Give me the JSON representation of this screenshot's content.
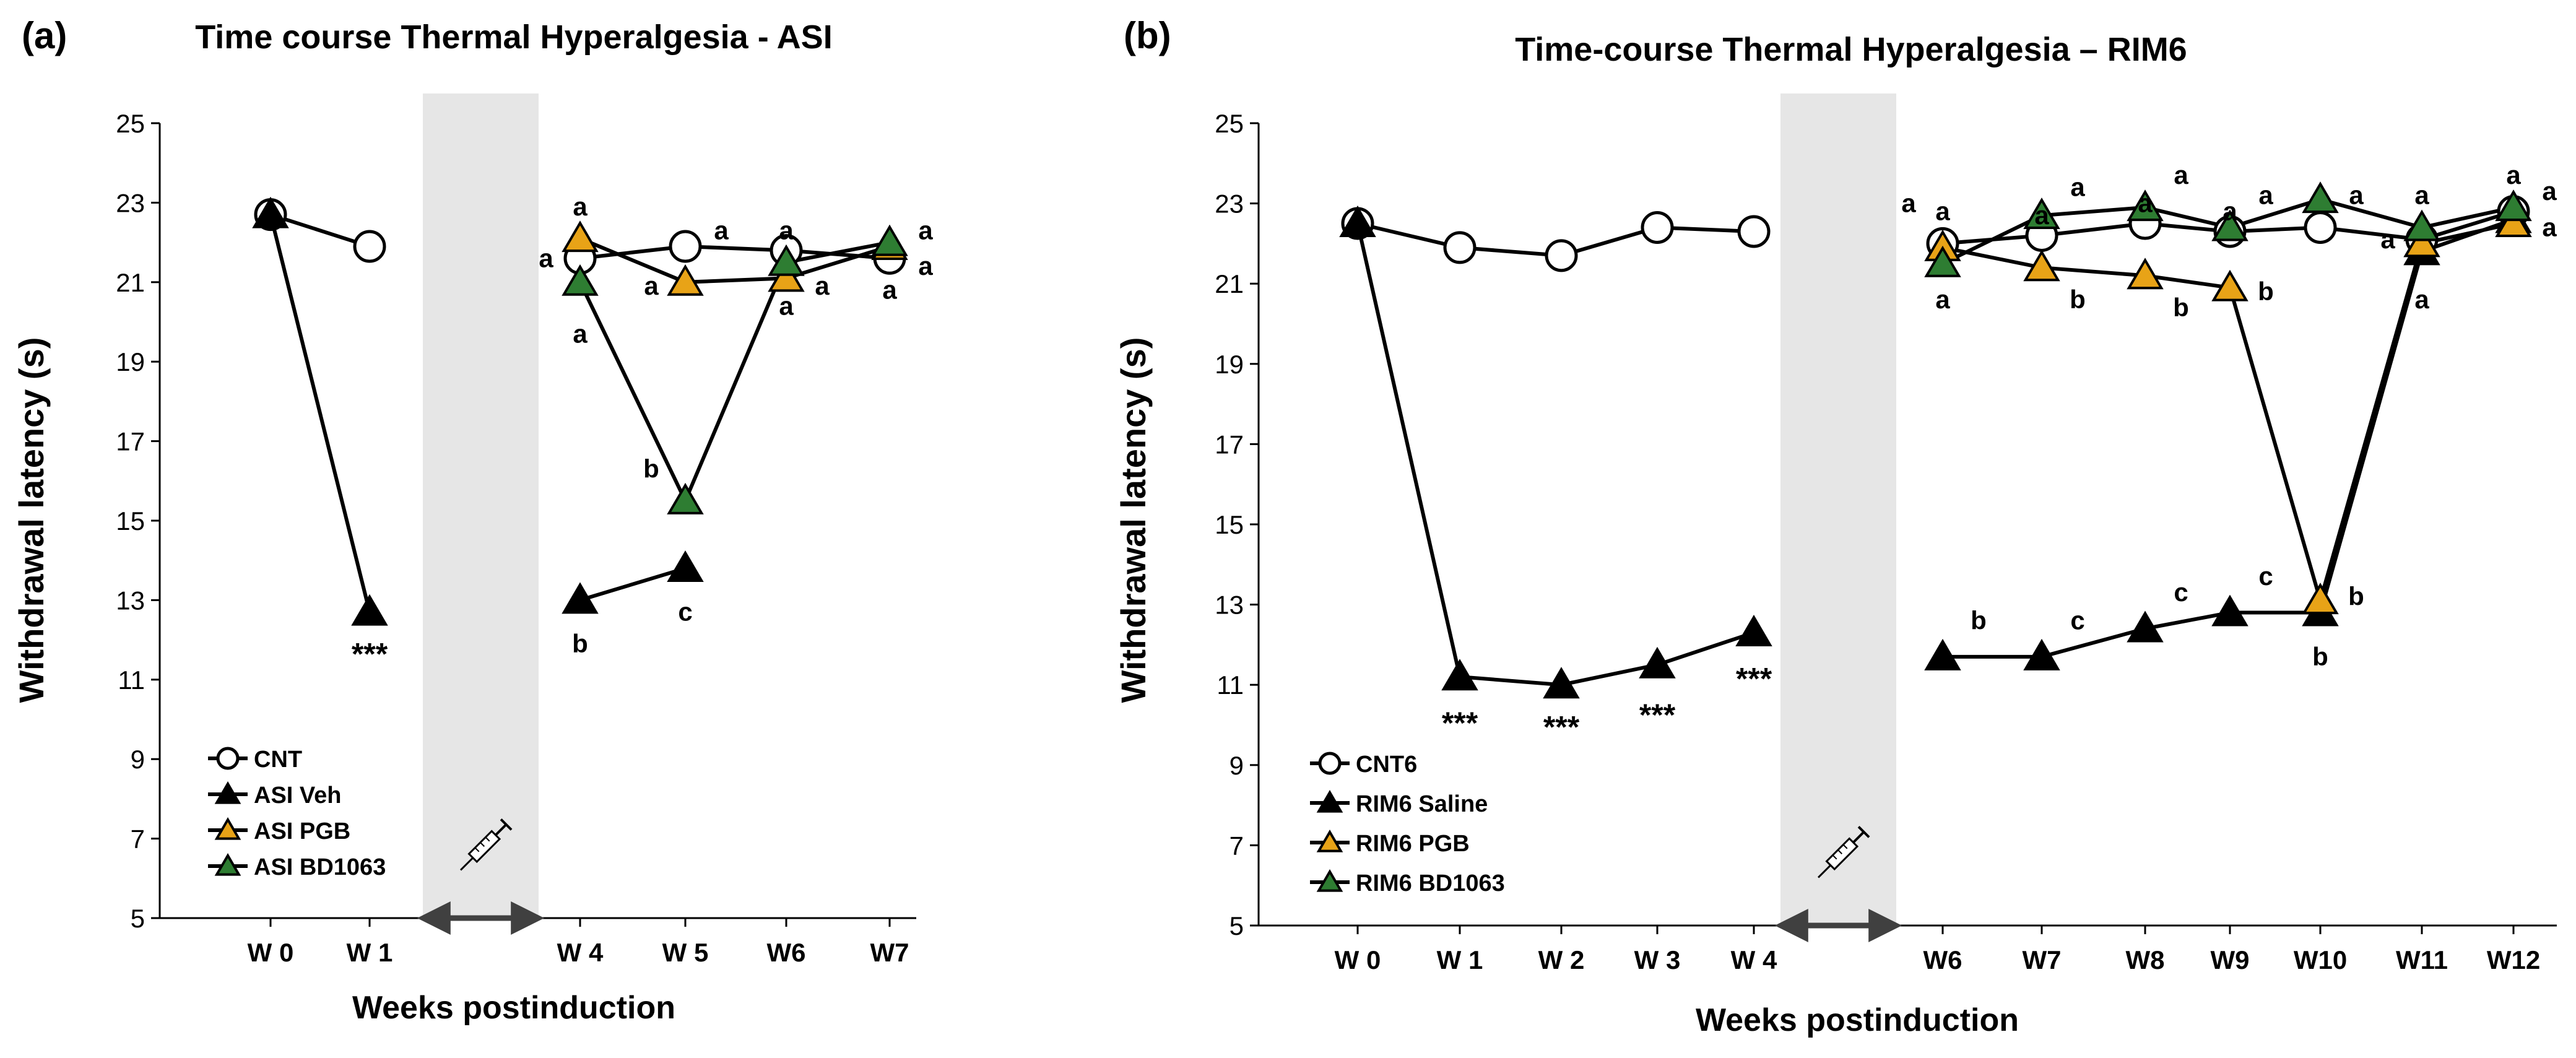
{
  "chart_data": [
    {
      "type": "line",
      "panel_label": "(a)",
      "title": "Time course Thermal Hyperalgesia - ASI",
      "xlabel": "Weeks postinduction",
      "ylabel": "Withdrawal latency (s)",
      "ylim": [
        5,
        25
      ],
      "y_ticks": [
        "5",
        "7",
        "9",
        "11",
        "13",
        "15",
        "17",
        "19",
        "21",
        "23",
        "25"
      ],
      "categories": [
        "W 0",
        "W 1",
        "W 4",
        "W 5",
        "W6",
        "W7"
      ],
      "gap_between": [
        "W 1",
        "W 4"
      ],
      "legend_position": "bottom-left",
      "series": [
        {
          "name": "CNT",
          "marker": "circle",
          "color": "#ffffff",
          "values": [
            22.7,
            21.9,
            21.6,
            21.9,
            21.8,
            21.6
          ]
        },
        {
          "name": "ASI Veh",
          "marker": "triangle",
          "color": "#000000",
          "values": [
            22.7,
            12.7,
            13.0,
            13.8,
            null,
            null
          ]
        },
        {
          "name": "ASI PGB",
          "marker": "triangle",
          "color": "#e8a317",
          "values": [
            null,
            null,
            22.1,
            21.0,
            21.1,
            21.9
          ]
        },
        {
          "name": "ASI BD1063",
          "marker": "triangle",
          "color": "#2e7d32",
          "values": [
            null,
            null,
            21.0,
            15.5,
            21.5,
            22.0
          ]
        }
      ],
      "annotations": [
        {
          "text": "***",
          "category": "W 1",
          "y": 11.6
        },
        {
          "text": "a",
          "category": "W 4",
          "y": 22.9
        },
        {
          "text": "a",
          "category": "W 4",
          "y": 21.6,
          "side": "left"
        },
        {
          "text": "a",
          "category": "W 4",
          "y": 19.7
        },
        {
          "text": "b",
          "category": "W 4",
          "y": 11.9
        },
        {
          "text": "a",
          "category": "W 5",
          "y": 22.3,
          "side": "right"
        },
        {
          "text": "a",
          "category": "W 5",
          "y": 20.9,
          "side": "left"
        },
        {
          "text": "b",
          "category": "W 5",
          "y": 16.3,
          "side": "left"
        },
        {
          "text": "c",
          "category": "W 5",
          "y": 12.7
        },
        {
          "text": "a",
          "category": "W6",
          "y": 22.3
        },
        {
          "text": "a",
          "category": "W6",
          "y": 20.9,
          "side": "right"
        },
        {
          "text": "a",
          "category": "W6",
          "y": 20.4
        },
        {
          "text": "a",
          "category": "W7",
          "y": 22.3,
          "side": "right"
        },
        {
          "text": "a",
          "category": "W7",
          "y": 21.4,
          "side": "right"
        },
        {
          "text": "a",
          "category": "W7",
          "y": 20.8
        }
      ]
    },
    {
      "type": "line",
      "panel_label": "(b)",
      "title": "Time-course Thermal Hyperalgesia – RIM6",
      "xlabel": "Weeks postinduction",
      "ylabel": "Withdrawal latency (s)",
      "ylim": [
        5,
        25
      ],
      "y_ticks": [
        "5",
        "7",
        "9",
        "11",
        "13",
        "15",
        "17",
        "19",
        "21",
        "23",
        "25"
      ],
      "categories": [
        "W 0",
        "W 1",
        "W 2",
        "W 3",
        "W 4",
        "W6",
        "W7",
        "W8",
        "W9",
        "W10",
        "W11",
        "W12"
      ],
      "gap_between": [
        "W 4",
        "W6"
      ],
      "legend_position": "bottom-left",
      "series": [
        {
          "name": "CNT6",
          "marker": "circle",
          "color": "#ffffff",
          "values": [
            22.5,
            21.9,
            21.7,
            22.4,
            22.3,
            22.0,
            22.2,
            22.5,
            22.3,
            22.4,
            22.1,
            22.8
          ]
        },
        {
          "name": "RIM6 Saline",
          "marker": "triangle",
          "color": "#000000",
          "values": [
            22.5,
            11.2,
            11.0,
            11.5,
            12.3,
            11.7,
            11.7,
            12.4,
            12.8,
            12.8,
            21.8,
            22.6
          ]
        },
        {
          "name": "RIM6 PGB",
          "marker": "triangle",
          "color": "#e8a317",
          "values": [
            null,
            null,
            null,
            null,
            null,
            21.9,
            21.4,
            21.2,
            20.9,
            13.1,
            22.0,
            22.5
          ]
        },
        {
          "name": "RIM6 BD1063",
          "marker": "triangle",
          "color": "#2e7d32",
          "values": [
            null,
            null,
            null,
            null,
            null,
            21.5,
            22.7,
            22.9,
            22.4,
            23.1,
            22.4,
            22.9
          ]
        }
      ],
      "annotations": [
        {
          "text": "***",
          "category": "W 1",
          "y": 10.0
        },
        {
          "text": "***",
          "category": "W 2",
          "y": 9.9
        },
        {
          "text": "***",
          "category": "W 3",
          "y": 10.2
        },
        {
          "text": "***",
          "category": "W 4",
          "y": 11.1
        },
        {
          "text": "a",
          "category": "W6",
          "y": 23.0,
          "side": "left"
        },
        {
          "text": "a",
          "category": "W6",
          "y": 22.8
        },
        {
          "text": "a",
          "category": "W6",
          "y": 20.6
        },
        {
          "text": "b",
          "category": "W6",
          "y": 12.6,
          "side": "right"
        },
        {
          "text": "a",
          "category": "W7",
          "y": 23.4,
          "side": "right"
        },
        {
          "text": "a",
          "category": "W7",
          "y": 22.7
        },
        {
          "text": "b",
          "category": "W7",
          "y": 20.6,
          "side": "right"
        },
        {
          "text": "c",
          "category": "W7",
          "y": 12.6,
          "side": "right"
        },
        {
          "text": "a",
          "category": "W8",
          "y": 23.7,
          "side": "right"
        },
        {
          "text": "a",
          "category": "W8",
          "y": 23.0
        },
        {
          "text": "b",
          "category": "W8",
          "y": 20.4,
          "side": "right"
        },
        {
          "text": "c",
          "category": "W8",
          "y": 13.3,
          "side": "right"
        },
        {
          "text": "a",
          "category": "W9",
          "y": 23.2,
          "side": "right"
        },
        {
          "text": "a",
          "category": "W9",
          "y": 22.8
        },
        {
          "text": "b",
          "category": "W9",
          "y": 20.8,
          "side": "right"
        },
        {
          "text": "c",
          "category": "W9",
          "y": 13.7,
          "side": "right"
        },
        {
          "text": "a",
          "category": "W10",
          "y": 23.2,
          "side": "right"
        },
        {
          "text": "b",
          "category": "W10",
          "y": 13.2,
          "side": "right"
        },
        {
          "text": "b",
          "category": "W10",
          "y": 11.7
        },
        {
          "text": "a",
          "category": "W11",
          "y": 23.2
        },
        {
          "text": "a",
          "category": "W11",
          "y": 22.1,
          "side": "left"
        },
        {
          "text": "a",
          "category": "W11",
          "y": 20.6
        },
        {
          "text": "a",
          "category": "W12",
          "y": 23.7
        },
        {
          "text": "a",
          "category": "W12",
          "y": 23.3,
          "side": "right"
        },
        {
          "text": "a",
          "category": "W12",
          "y": 22.4,
          "side": "right"
        }
      ]
    }
  ]
}
